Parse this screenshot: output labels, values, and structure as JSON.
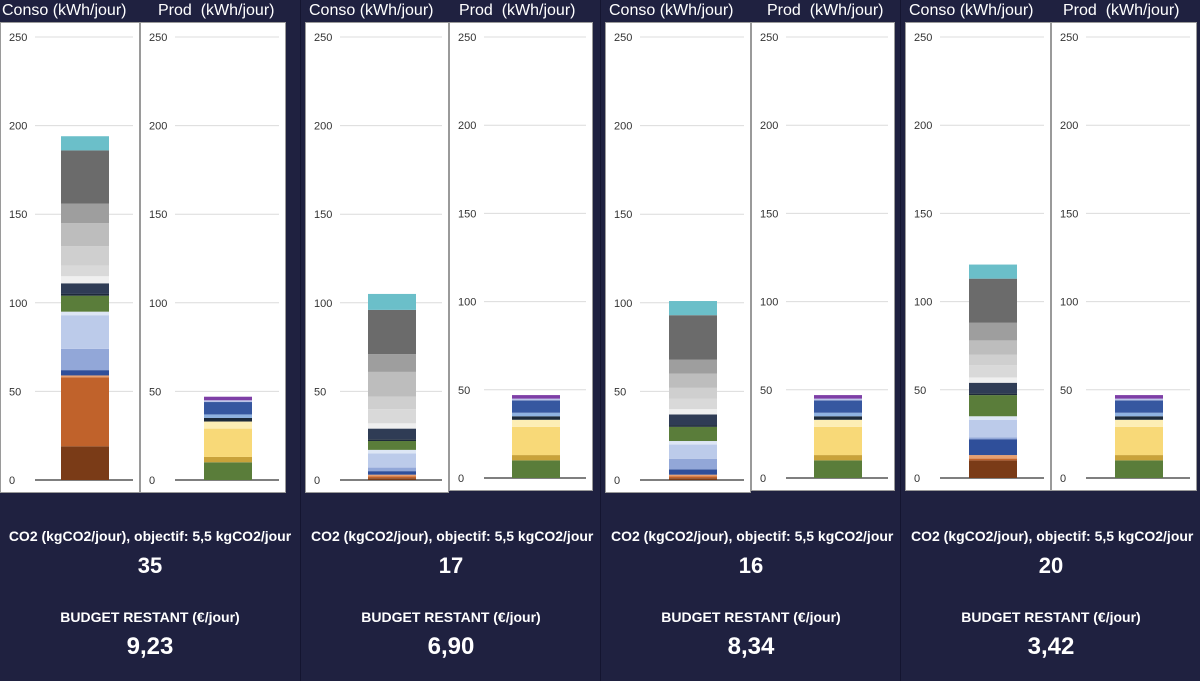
{
  "headers": {
    "conso": "Conso (kWh/jour)",
    "prod": "Prod  (kWh/jour)"
  },
  "labels": {
    "co2": "CO2 (kgCO2/jour), objectif: 5,5 kgCO2/jour",
    "budget": "BUDGET RESTANT (€/jour)"
  },
  "scenarios": [
    {
      "co2": "35",
      "budget": "9,23"
    },
    {
      "co2": "17",
      "budget": "6,90"
    },
    {
      "co2": "16",
      "budget": "8,34"
    },
    {
      "co2": "20",
      "budget": "3,42"
    }
  ],
  "chart_data": {
    "type": "bar",
    "stacked": true,
    "ylim": [
      0,
      250
    ],
    "yticks": [
      0,
      50,
      100,
      150,
      200,
      250
    ],
    "grid": true,
    "charts": [
      {
        "panel": 1,
        "kind": "conso",
        "segments": [
          {
            "value": 19,
            "color": "#7a3b17"
          },
          {
            "value": 39,
            "color": "#c0622b"
          },
          {
            "value": 1,
            "color": "#e8a070"
          },
          {
            "value": 3,
            "color": "#2f4f9a"
          },
          {
            "value": 12,
            "color": "#92a7d8"
          },
          {
            "value": 19,
            "color": "#bccbea"
          },
          {
            "value": 2,
            "color": "#dde6f5"
          },
          {
            "value": 9,
            "color": "#5a7d3a"
          },
          {
            "value": 1,
            "color": "#1d2a3a"
          },
          {
            "value": 6,
            "color": "#2f3c55"
          },
          {
            "value": 4,
            "color": "#efefef"
          },
          {
            "value": 6,
            "color": "#d9d9d9"
          },
          {
            "value": 11,
            "color": "#cfcfcf"
          },
          {
            "value": 13,
            "color": "#bdbdbd"
          },
          {
            "value": 11,
            "color": "#9e9e9e"
          },
          {
            "value": 30,
            "color": "#6b6b6b"
          },
          {
            "value": 8,
            "color": "#6bbfc9"
          }
        ]
      },
      {
        "panel": 1,
        "kind": "prod",
        "segments": [
          {
            "value": 10,
            "color": "#5a7d3a"
          },
          {
            "value": 3,
            "color": "#c9a23a"
          },
          {
            "value": 16,
            "color": "#f8d978"
          },
          {
            "value": 4,
            "color": "#fdeeb5"
          },
          {
            "value": 2,
            "color": "#1d2a3a"
          },
          {
            "value": 2,
            "color": "#8fb2e0"
          },
          {
            "value": 7,
            "color": "#3657a0"
          },
          {
            "value": 1,
            "color": "#bcc4e8"
          },
          {
            "value": 2,
            "color": "#7e3fa6"
          }
        ]
      },
      {
        "panel": 2,
        "kind": "conso",
        "segments": [
          {
            "value": 1,
            "color": "#7a3b17"
          },
          {
            "value": 1,
            "color": "#c0622b"
          },
          {
            "value": 1,
            "color": "#e8a070"
          },
          {
            "value": 2,
            "color": "#2f4f9a"
          },
          {
            "value": 2,
            "color": "#92a7d8"
          },
          {
            "value": 8,
            "color": "#bccbea"
          },
          {
            "value": 2,
            "color": "#dde6f5"
          },
          {
            "value": 5,
            "color": "#5a7d3a"
          },
          {
            "value": 1,
            "color": "#1d2a3a"
          },
          {
            "value": 6,
            "color": "#2f3c55"
          },
          {
            "value": 3,
            "color": "#efefef"
          },
          {
            "value": 8,
            "color": "#d9d9d9"
          },
          {
            "value": 7,
            "color": "#cfcfcf"
          },
          {
            "value": 14,
            "color": "#bdbdbd"
          },
          {
            "value": 10,
            "color": "#9e9e9e"
          },
          {
            "value": 25,
            "color": "#6b6b6b"
          },
          {
            "value": 9,
            "color": "#6bbfc9"
          }
        ]
      },
      {
        "panel": 2,
        "kind": "prod",
        "segments": [
          {
            "value": 10,
            "color": "#5a7d3a"
          },
          {
            "value": 3,
            "color": "#c9a23a"
          },
          {
            "value": 16,
            "color": "#f8d978"
          },
          {
            "value": 4,
            "color": "#fdeeb5"
          },
          {
            "value": 2,
            "color": "#1d2a3a"
          },
          {
            "value": 2,
            "color": "#8fb2e0"
          },
          {
            "value": 7,
            "color": "#3657a0"
          },
          {
            "value": 1,
            "color": "#bcc4e8"
          },
          {
            "value": 2,
            "color": "#7e3fa6"
          }
        ]
      },
      {
        "panel": 3,
        "kind": "conso",
        "segments": [
          {
            "value": 1,
            "color": "#7a3b17"
          },
          {
            "value": 1,
            "color": "#c0622b"
          },
          {
            "value": 1,
            "color": "#e8a070"
          },
          {
            "value": 3,
            "color": "#2f4f9a"
          },
          {
            "value": 6,
            "color": "#92a7d8"
          },
          {
            "value": 8,
            "color": "#bccbea"
          },
          {
            "value": 2,
            "color": "#dde6f5"
          },
          {
            "value": 8,
            "color": "#5a7d3a"
          },
          {
            "value": 1,
            "color": "#1d2a3a"
          },
          {
            "value": 6,
            "color": "#2f3c55"
          },
          {
            "value": 3,
            "color": "#efefef"
          },
          {
            "value": 6,
            "color": "#d9d9d9"
          },
          {
            "value": 6,
            "color": "#cfcfcf"
          },
          {
            "value": 8,
            "color": "#bdbdbd"
          },
          {
            "value": 8,
            "color": "#9e9e9e"
          },
          {
            "value": 25,
            "color": "#6b6b6b"
          },
          {
            "value": 8,
            "color": "#6bbfc9"
          }
        ]
      },
      {
        "panel": 3,
        "kind": "prod",
        "segments": [
          {
            "value": 10,
            "color": "#5a7d3a"
          },
          {
            "value": 3,
            "color": "#c9a23a"
          },
          {
            "value": 16,
            "color": "#f8d978"
          },
          {
            "value": 4,
            "color": "#fdeeb5"
          },
          {
            "value": 2,
            "color": "#1d2a3a"
          },
          {
            "value": 2,
            "color": "#8fb2e0"
          },
          {
            "value": 7,
            "color": "#3657a0"
          },
          {
            "value": 1,
            "color": "#bcc4e8"
          },
          {
            "value": 2,
            "color": "#7e3fa6"
          }
        ]
      },
      {
        "panel": 4,
        "kind": "conso",
        "segments": [
          {
            "value": 10,
            "color": "#7a3b17"
          },
          {
            "value": 1,
            "color": "#c0622b"
          },
          {
            "value": 2,
            "color": "#e8a070"
          },
          {
            "value": 9,
            "color": "#2f4f9a"
          },
          {
            "value": 1,
            "color": "#92a7d8"
          },
          {
            "value": 10,
            "color": "#bccbea"
          },
          {
            "value": 2,
            "color": "#dde6f5"
          },
          {
            "value": 12,
            "color": "#5a7d3a"
          },
          {
            "value": 1,
            "color": "#1d2a3a"
          },
          {
            "value": 6,
            "color": "#2f3c55"
          },
          {
            "value": 3,
            "color": "#efefef"
          },
          {
            "value": 7,
            "color": "#d9d9d9"
          },
          {
            "value": 6,
            "color": "#cfcfcf"
          },
          {
            "value": 8,
            "color": "#bdbdbd"
          },
          {
            "value": 10,
            "color": "#9e9e9e"
          },
          {
            "value": 25,
            "color": "#6b6b6b"
          },
          {
            "value": 8,
            "color": "#6bbfc9"
          }
        ]
      },
      {
        "panel": 4,
        "kind": "prod",
        "segments": [
          {
            "value": 10,
            "color": "#5a7d3a"
          },
          {
            "value": 3,
            "color": "#c9a23a"
          },
          {
            "value": 16,
            "color": "#f8d978"
          },
          {
            "value": 4,
            "color": "#fdeeb5"
          },
          {
            "value": 2,
            "color": "#1d2a3a"
          },
          {
            "value": 2,
            "color": "#8fb2e0"
          },
          {
            "value": 7,
            "color": "#3657a0"
          },
          {
            "value": 1,
            "color": "#bcc4e8"
          },
          {
            "value": 2,
            "color": "#7e3fa6"
          }
        ]
      }
    ]
  }
}
